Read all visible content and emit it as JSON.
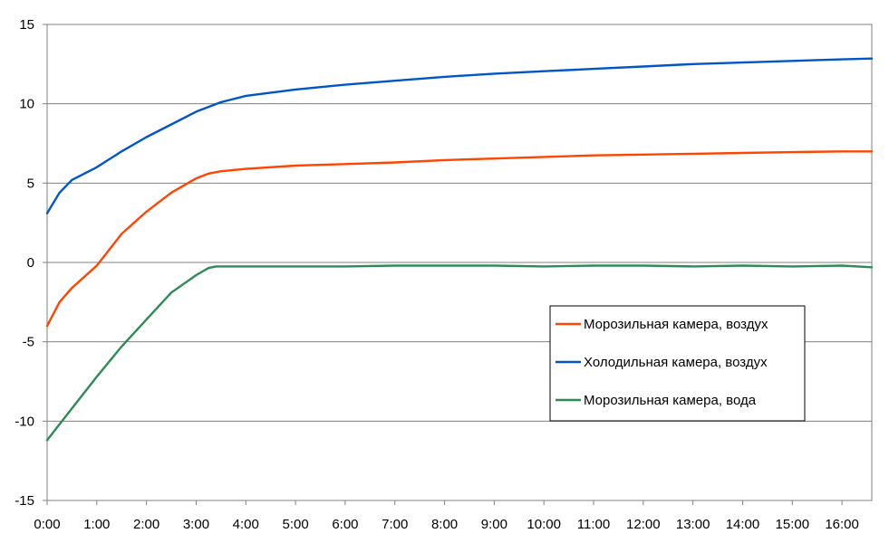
{
  "chart_data": {
    "type": "line",
    "title": "",
    "xlabel": "",
    "ylabel": "",
    "x_unit": "hours",
    "xlim": [
      0,
      16.6
    ],
    "ylim": [
      -15,
      15
    ],
    "x_ticks": [
      0,
      1,
      2,
      3,
      4,
      5,
      6,
      7,
      8,
      9,
      10,
      11,
      12,
      13,
      14,
      15,
      16
    ],
    "x_tick_labels": [
      "0:00",
      "1:00",
      "2:00",
      "3:00",
      "4:00",
      "5:00",
      "6:00",
      "7:00",
      "8:00",
      "9:00",
      "10:00",
      "11:00",
      "12:00",
      "13:00",
      "14:00",
      "15:00",
      "16:00"
    ],
    "y_ticks": [
      15,
      10,
      5,
      0,
      -5,
      -10,
      -15
    ],
    "y_tick_labels": [
      "15",
      "10",
      "5",
      "0",
      "-5",
      "-10",
      "-15"
    ],
    "grid": "horizontal",
    "legend_placement": "right",
    "series": [
      {
        "name": "Морозильная камера, воздух",
        "color": "#ff4500",
        "x": [
          0,
          0.25,
          0.5,
          0.75,
          1.0,
          1.25,
          1.5,
          2.0,
          2.5,
          3.0,
          3.25,
          3.5,
          4.0,
          5.0,
          6.0,
          7.0,
          8.0,
          9.0,
          10.0,
          11.0,
          12.0,
          13.0,
          14.0,
          15.0,
          16.0,
          16.6
        ],
        "y": [
          -4.0,
          -2.5,
          -1.6,
          -0.9,
          -0.2,
          0.8,
          1.8,
          3.2,
          4.4,
          5.3,
          5.6,
          5.75,
          5.9,
          6.1,
          6.2,
          6.3,
          6.45,
          6.55,
          6.65,
          6.75,
          6.8,
          6.85,
          6.9,
          6.95,
          7.0,
          7.0
        ]
      },
      {
        "name": "Холодильная камера, воздух",
        "color": "#0055c8",
        "x": [
          0,
          0.25,
          0.5,
          1.0,
          1.5,
          2.0,
          2.5,
          3.0,
          3.5,
          4.0,
          5.0,
          6.0,
          7.0,
          8.0,
          9.0,
          10.0,
          11.0,
          12.0,
          13.0,
          14.0,
          15.0,
          16.0,
          16.6
        ],
        "y": [
          3.1,
          4.4,
          5.2,
          6.0,
          7.0,
          7.9,
          8.7,
          9.5,
          10.1,
          10.5,
          10.9,
          11.2,
          11.45,
          11.7,
          11.9,
          12.05,
          12.2,
          12.35,
          12.5,
          12.6,
          12.7,
          12.8,
          12.85
        ]
      },
      {
        "name": "Морозильная камера, вода",
        "color": "#2e8b57",
        "x": [
          0,
          0.5,
          1.0,
          1.5,
          2.0,
          2.5,
          3.0,
          3.25,
          3.4,
          3.6,
          4.0,
          5.0,
          6.0,
          7.0,
          8.0,
          9.0,
          10.0,
          11.0,
          12.0,
          13.0,
          14.0,
          15.0,
          16.0,
          16.6
        ],
        "y": [
          -11.2,
          -9.2,
          -7.2,
          -5.3,
          -3.6,
          -1.9,
          -0.8,
          -0.35,
          -0.25,
          -0.25,
          -0.25,
          -0.25,
          -0.25,
          -0.2,
          -0.2,
          -0.2,
          -0.25,
          -0.2,
          -0.2,
          -0.25,
          -0.2,
          -0.25,
          -0.2,
          -0.3
        ]
      }
    ]
  }
}
